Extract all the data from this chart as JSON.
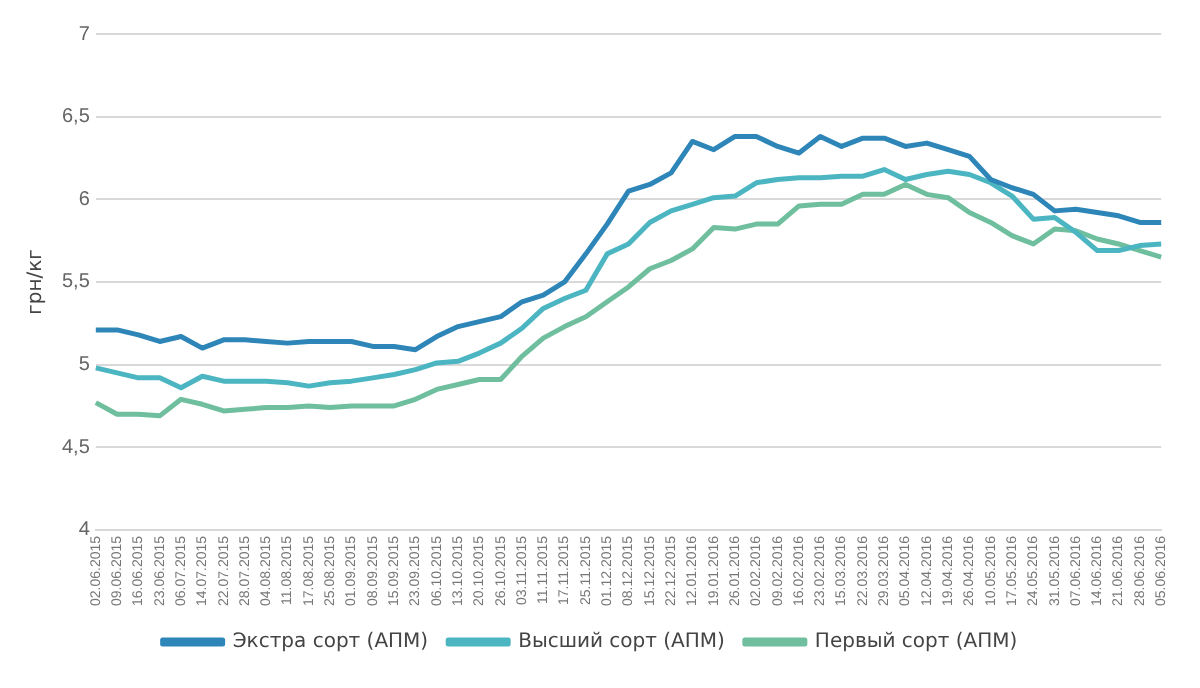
{
  "chart_data": {
    "type": "line",
    "ylabel": "грн/кг",
    "categories": [
      "02.06.2015",
      "09.06.2015",
      "16.06.2015",
      "23.06.2015",
      "06.07.2015",
      "14.07.2015",
      "22.07.2015",
      "28.07.2015",
      "04.08.2015",
      "11.08.2015",
      "17.08.2015",
      "25.08.2015",
      "01.09.2015",
      "08.09.2015",
      "15.09.2015",
      "23.09.2015",
      "06.10.2015",
      "13.10.2015",
      "20.10.2015",
      "26.10.2015",
      "03.11.2015",
      "11.11.2015",
      "17.11.2015",
      "25.11.2015",
      "01.12.2015",
      "08.12.2015",
      "15.12.2015",
      "22.12.2015",
      "12.01.2016",
      "19.01.2016",
      "26.01.2016",
      "02.02.2016",
      "09.02.2016",
      "16.02.2016",
      "23.02.2016",
      "15.03.2016",
      "22.03.2016",
      "29.03.2016",
      "05.04.2016",
      "12.04.2016",
      "19.04.2016",
      "26.04.2016",
      "10.05.2016",
      "17.05.2016",
      "24.05.2016",
      "31.05.2016",
      "07.06.2016",
      "14.06.2016",
      "21.06.2016",
      "28.06.2016",
      "05.06.2016"
    ],
    "series": [
      {
        "name": "Экстра сорт (АПМ)",
        "color": "#2e86b8",
        "values": [
          5.21,
          5.21,
          5.18,
          5.14,
          5.17,
          5.1,
          5.15,
          5.15,
          5.14,
          5.13,
          5.14,
          5.14,
          5.14,
          5.11,
          5.11,
          5.09,
          5.17,
          5.23,
          5.26,
          5.29,
          5.38,
          5.42,
          5.5,
          5.67,
          5.85,
          6.05,
          6.09,
          6.16,
          6.35,
          6.3,
          6.38,
          6.38,
          6.32,
          6.28,
          6.38,
          6.32,
          6.37,
          6.37,
          6.32,
          6.34,
          6.3,
          6.26,
          6.12,
          6.07,
          6.03,
          5.93,
          5.94,
          5.92,
          5.9,
          5.86,
          5.86
        ]
      },
      {
        "name": "Высший сорт (АПМ)",
        "color": "#4bb5c1",
        "values": [
          4.98,
          4.95,
          4.92,
          4.92,
          4.86,
          4.93,
          4.9,
          4.9,
          4.9,
          4.89,
          4.87,
          4.89,
          4.9,
          4.92,
          4.94,
          4.97,
          5.01,
          5.02,
          5.07,
          5.13,
          5.22,
          5.34,
          5.4,
          5.45,
          5.67,
          5.73,
          5.86,
          5.93,
          5.97,
          6.01,
          6.02,
          6.1,
          6.12,
          6.13,
          6.13,
          6.14,
          6.14,
          6.18,
          6.12,
          6.15,
          6.17,
          6.15,
          6.1,
          6.02,
          5.88,
          5.89,
          5.8,
          5.69,
          5.69,
          5.72,
          5.73
        ]
      },
      {
        "name": "Первый сорт (АПМ)",
        "color": "#6fbf9f",
        "values": [
          4.77,
          4.7,
          4.7,
          4.69,
          4.79,
          4.76,
          4.72,
          4.73,
          4.74,
          4.74,
          4.75,
          4.74,
          4.75,
          4.75,
          4.75,
          4.79,
          4.85,
          4.88,
          4.91,
          4.91,
          5.05,
          5.16,
          5.23,
          5.29,
          5.38,
          5.47,
          5.58,
          5.63,
          5.7,
          5.83,
          5.82,
          5.85,
          5.85,
          5.96,
          5.97,
          5.97,
          6.03,
          6.03,
          6.09,
          6.03,
          6.01,
          5.92,
          5.86,
          5.78,
          5.73,
          5.82,
          5.81,
          5.76,
          5.73,
          5.69,
          5.65
        ]
      }
    ],
    "ylim": [
      4,
      7
    ],
    "yticks": [
      {
        "value": 4,
        "label": "4"
      },
      {
        "value": 4.5,
        "label": "4,5"
      },
      {
        "value": 5,
        "label": "5"
      },
      {
        "value": 5.5,
        "label": "5,5"
      },
      {
        "value": 6,
        "label": "6"
      },
      {
        "value": 6.5,
        "label": "6,5"
      },
      {
        "value": 7,
        "label": "7"
      }
    ],
    "grid": "y",
    "legend": "bottom",
    "marker": "none",
    "line_style": "solid"
  }
}
